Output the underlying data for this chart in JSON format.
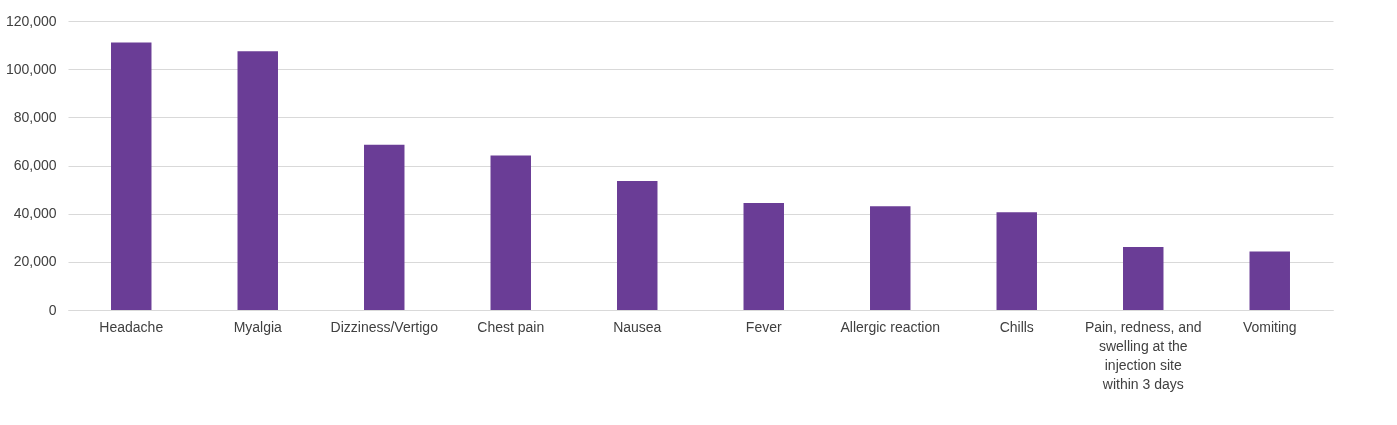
{
  "chart_data": {
    "type": "bar",
    "categories": [
      "Headache",
      "Myalgia",
      "Dizziness/Vertigo",
      "Chest pain",
      "Nausea",
      "Fever",
      "Allergic reaction",
      "Chills",
      "Pain, redness, and swelling at the injection site within 3 days",
      "Vomiting"
    ],
    "values": [
      111100,
      107400,
      68600,
      64200,
      53600,
      44400,
      43100,
      40600,
      26200,
      24300
    ],
    "color": "#6a3d96",
    "ylim": [
      0,
      120000
    ],
    "yticks": [
      0,
      {
        "value": 20000,
        "label": "20,000"
      },
      {
        "value": 40000,
        "label": "40,000"
      },
      {
        "value": 60000,
        "label": "60,000"
      },
      {
        "value": 80000,
        "label": "80,000"
      },
      {
        "value": 100000,
        "label": "100,000"
      },
      {
        "value": 120000,
        "label": "120,000"
      }
    ],
    "grid": "y"
  }
}
